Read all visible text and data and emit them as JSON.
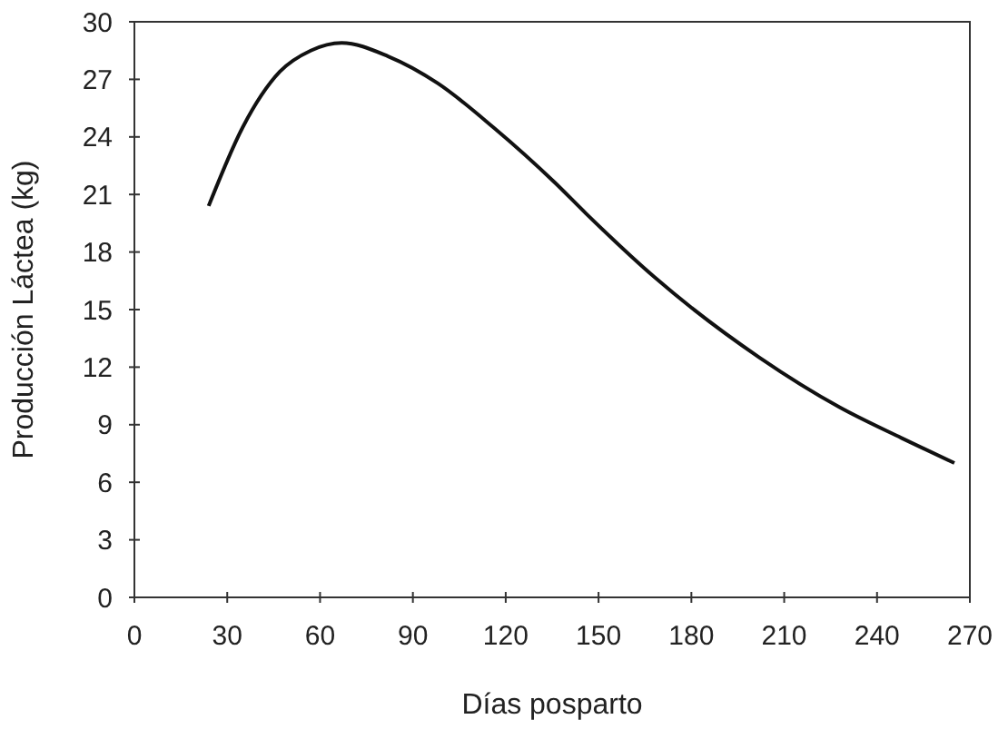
{
  "chart_data": {
    "type": "line",
    "xlabel": "Días posparto",
    "ylabel": "Producción Láctea (kg)",
    "series": [
      {
        "color": "#111111",
        "x": [
          24,
          35,
          47,
          57,
          67,
          82,
          98,
          116,
          136,
          146,
          168,
          202,
          228,
          248,
          265
        ],
        "values": [
          20.4,
          24.5,
          27.4,
          28.5,
          28.9,
          28.2,
          26.8,
          24.5,
          21.6,
          20.0,
          16.7,
          12.5,
          9.9,
          8.3,
          7.0
        ]
      }
    ],
    "xlim": [
      0,
      270
    ],
    "xticks": [
      0,
      30,
      60,
      90,
      120,
      150,
      180,
      210,
      240,
      270
    ],
    "ylim": [
      0,
      30
    ],
    "yticks": [
      0,
      3,
      6,
      9,
      12,
      15,
      18,
      21,
      24,
      27,
      30
    ],
    "grid": false,
    "marker": "none",
    "line_style": "solid"
  }
}
